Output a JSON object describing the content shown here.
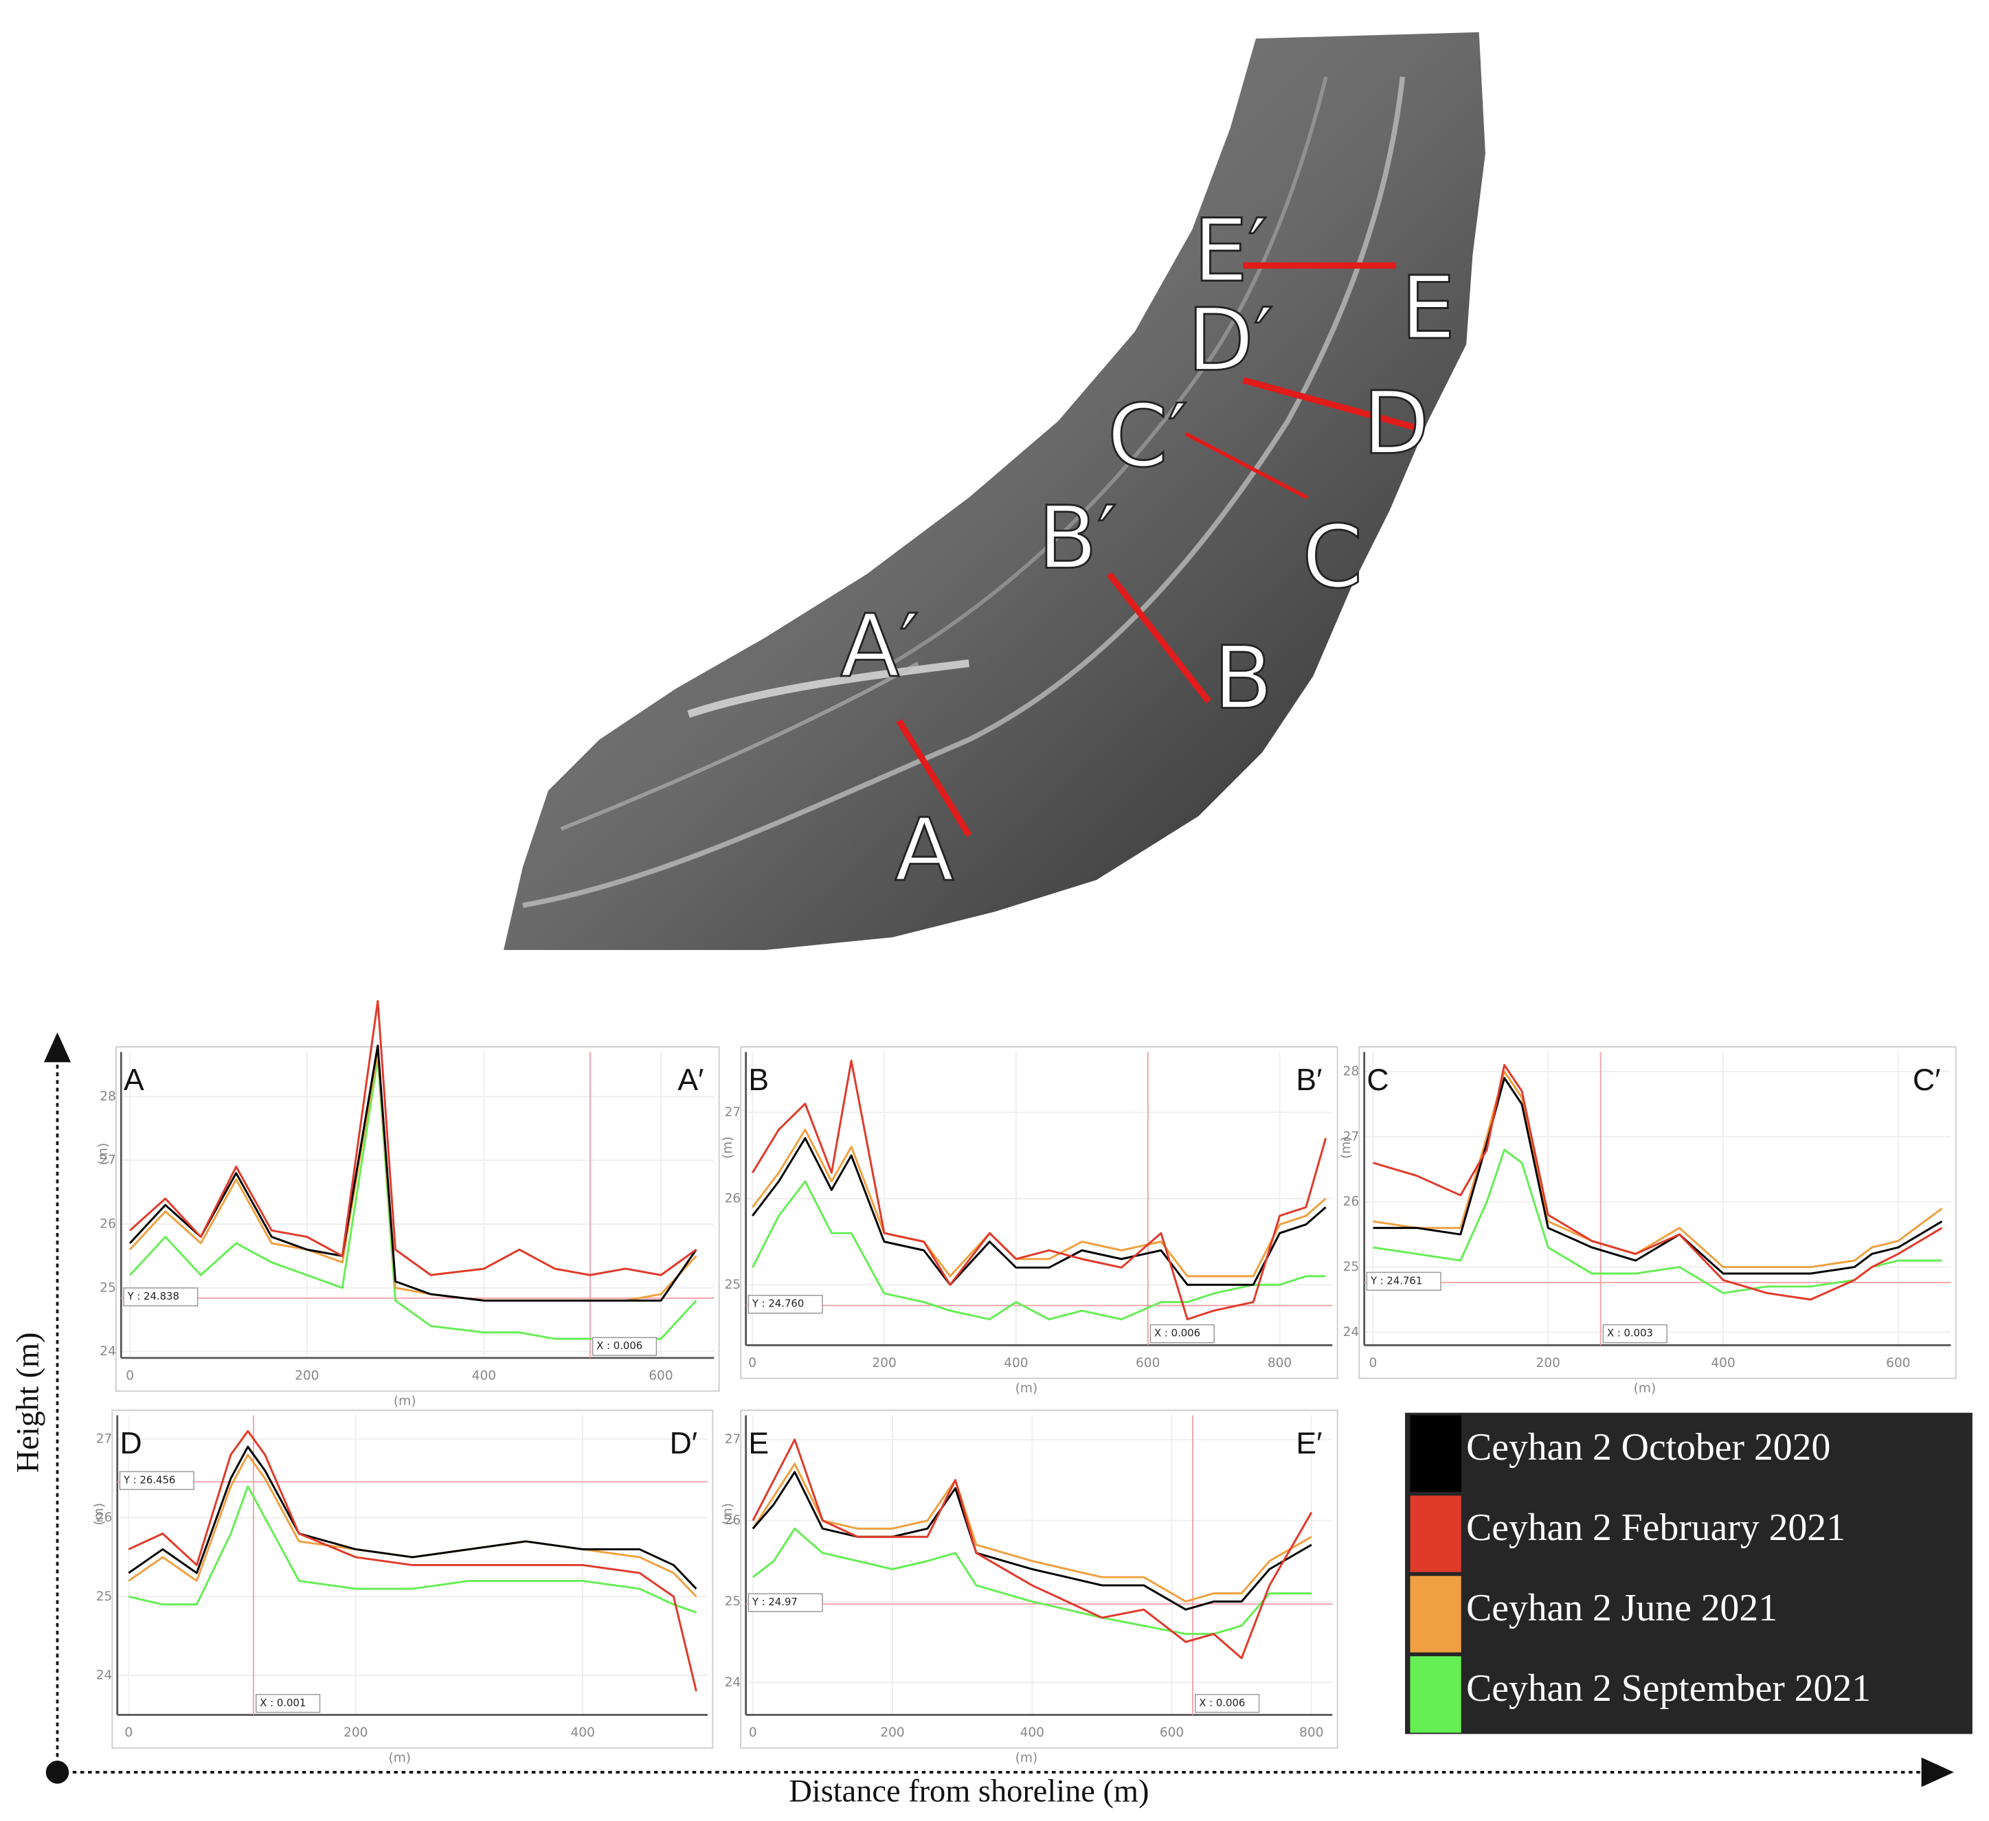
{
  "map": {
    "labels": [
      "A′",
      "A",
      "B′",
      "B",
      "C′",
      "C",
      "D′",
      "D",
      "E′",
      "E"
    ]
  },
  "y_axis_label": "Height (m)",
  "x_axis_label": "Distance from shoreline (m)",
  "chart_data": [
    {
      "type": "line",
      "start_label": "A",
      "end_label": "A′",
      "unit_label": "(m)",
      "xlabel": "(m)",
      "xlim": [
        -10,
        660
      ],
      "xticks": [
        0,
        200,
        400,
        600
      ],
      "ylim": [
        23.9,
        28.7
      ],
      "yticks": [
        24,
        25,
        26,
        27,
        28
      ],
      "grid": true,
      "cursor_x": 520,
      "cursor_y": 24.838,
      "cursor_x_label": "X : 0.006",
      "cursor_y_label": "Y : 24.838",
      "x": [
        0,
        40,
        80,
        120,
        160,
        200,
        240,
        280,
        300,
        340,
        400,
        440,
        480,
        520,
        560,
        600,
        640
      ],
      "series": [
        {
          "name": "Ceyhan 2 October 2020",
          "color": "#000000",
          "values": [
            25.7,
            26.3,
            25.8,
            26.8,
            25.8,
            25.6,
            25.5,
            28.8,
            25.1,
            24.9,
            24.8,
            24.8,
            24.8,
            24.8,
            24.8,
            24.8,
            25.6
          ]
        },
        {
          "name": "Ceyhan 2 February 2021",
          "color": "#e03a2a",
          "values": [
            25.9,
            26.4,
            25.8,
            26.9,
            25.9,
            25.8,
            25.5,
            29.5,
            25.6,
            25.2,
            25.3,
            25.6,
            25.3,
            25.2,
            25.3,
            25.2,
            25.6
          ]
        },
        {
          "name": "Ceyhan 2 June 2021",
          "color": "#f0a040",
          "values": [
            25.6,
            26.2,
            25.7,
            26.7,
            25.7,
            25.6,
            25.4,
            28.7,
            25.0,
            24.9,
            24.8,
            24.8,
            24.8,
            24.8,
            24.8,
            24.9,
            25.5
          ]
        },
        {
          "name": "Ceyhan 2 September 2021",
          "color": "#66ee55",
          "values": [
            25.2,
            25.8,
            25.2,
            25.7,
            25.4,
            25.2,
            25.0,
            28.6,
            24.8,
            24.4,
            24.3,
            24.3,
            24.2,
            24.2,
            24.2,
            24.2,
            24.8
          ]
        }
      ]
    },
    {
      "type": "line",
      "start_label": "B",
      "end_label": "B′",
      "unit_label": "(m)",
      "xlabel": "(m)",
      "xlim": [
        -10,
        880
      ],
      "xticks": [
        0,
        200,
        400,
        600,
        800
      ],
      "ylim": [
        24.3,
        27.7
      ],
      "yticks": [
        25,
        26,
        27
      ],
      "grid": true,
      "cursor_x": 600,
      "cursor_y": 24.76,
      "cursor_x_label": "X : 0.006",
      "cursor_y_label": "Y : 24.760",
      "x": [
        0,
        40,
        80,
        120,
        150,
        200,
        260,
        300,
        360,
        400,
        450,
        500,
        560,
        620,
        660,
        700,
        760,
        800,
        840,
        870
      ],
      "series": [
        {
          "name": "Ceyhan 2 October 2020",
          "color": "#000000",
          "values": [
            25.8,
            26.2,
            26.7,
            26.1,
            26.5,
            25.5,
            25.4,
            25.0,
            25.5,
            25.2,
            25.2,
            25.4,
            25.3,
            25.4,
            25.0,
            25.0,
            25.0,
            25.6,
            25.7,
            25.9
          ]
        },
        {
          "name": "Ceyhan 2 February 2021",
          "color": "#e03a2a",
          "values": [
            26.3,
            26.8,
            27.1,
            26.3,
            27.6,
            25.6,
            25.5,
            25.0,
            25.6,
            25.3,
            25.4,
            25.3,
            25.2,
            25.6,
            24.6,
            24.7,
            24.8,
            25.8,
            25.9,
            26.7
          ]
        },
        {
          "name": "Ceyhan 2 June 2021",
          "color": "#f0a040",
          "values": [
            25.9,
            26.3,
            26.8,
            26.2,
            26.6,
            25.6,
            25.5,
            25.1,
            25.6,
            25.3,
            25.3,
            25.5,
            25.4,
            25.5,
            25.1,
            25.1,
            25.1,
            25.7,
            25.8,
            26.0
          ]
        },
        {
          "name": "Ceyhan 2 September 2021",
          "color": "#66ee55",
          "values": [
            25.2,
            25.8,
            26.2,
            25.6,
            25.6,
            24.9,
            24.8,
            24.7,
            24.6,
            24.8,
            24.6,
            24.7,
            24.6,
            24.8,
            24.8,
            24.9,
            25.0,
            25.0,
            25.1,
            25.1
          ]
        }
      ]
    },
    {
      "type": "line",
      "start_label": "C",
      "end_label": "C′",
      "unit_label": "(m)",
      "xlabel": "(m)",
      "xlim": [
        -10,
        660
      ],
      "xticks": [
        0,
        200,
        400,
        600
      ],
      "ylim": [
        23.8,
        28.3
      ],
      "yticks": [
        24,
        25,
        26,
        27,
        28
      ],
      "grid": true,
      "cursor_x": 260,
      "cursor_y": 24.761,
      "cursor_x_label": "X : 0.003",
      "cursor_y_label": "Y : 24.761",
      "x": [
        0,
        50,
        100,
        130,
        150,
        170,
        200,
        250,
        300,
        350,
        400,
        450,
        500,
        550,
        570,
        600,
        650
      ],
      "series": [
        {
          "name": "Ceyhan 2 October 2020",
          "color": "#000000",
          "values": [
            25.6,
            25.6,
            25.5,
            26.9,
            27.9,
            27.5,
            25.6,
            25.3,
            25.1,
            25.5,
            24.9,
            24.9,
            24.9,
            25.0,
            25.2,
            25.3,
            25.7
          ]
        },
        {
          "name": "Ceyhan 2 February 2021",
          "color": "#e03a2a",
          "values": [
            26.6,
            26.4,
            26.1,
            26.8,
            28.1,
            27.7,
            25.8,
            25.4,
            25.2,
            25.5,
            24.8,
            24.6,
            24.5,
            24.8,
            25.0,
            25.2,
            25.6
          ]
        },
        {
          "name": "Ceyhan 2 June 2021",
          "color": "#f0a040",
          "values": [
            25.7,
            25.6,
            25.6,
            27.0,
            28.0,
            27.6,
            25.7,
            25.4,
            25.2,
            25.6,
            25.0,
            25.0,
            25.0,
            25.1,
            25.3,
            25.4,
            25.9
          ]
        },
        {
          "name": "Ceyhan 2 September 2021",
          "color": "#66ee55",
          "values": [
            25.3,
            25.2,
            25.1,
            26.0,
            26.8,
            26.6,
            25.3,
            24.9,
            24.9,
            25.0,
            24.6,
            24.7,
            24.7,
            24.8,
            25.0,
            25.1,
            25.1
          ]
        }
      ]
    },
    {
      "type": "line",
      "start_label": "D",
      "end_label": "D′",
      "unit_label": "(m)",
      "xlabel": "(m)",
      "xlim": [
        -10,
        510
      ],
      "xticks": [
        0,
        200,
        400
      ],
      "ylim": [
        23.5,
        27.3
      ],
      "yticks": [
        24,
        25,
        26,
        27
      ],
      "grid": true,
      "cursor_x": 110,
      "cursor_y": 26.456,
      "cursor_x_label": "X : 0.001",
      "cursor_y_label": "Y : 26.456",
      "x": [
        0,
        30,
        60,
        90,
        105,
        120,
        150,
        200,
        250,
        300,
        350,
        400,
        450,
        480,
        500
      ],
      "series": [
        {
          "name": "Ceyhan 2 October 2020",
          "color": "#000000",
          "values": [
            25.3,
            25.6,
            25.3,
            26.5,
            26.9,
            26.6,
            25.8,
            25.6,
            25.5,
            25.6,
            25.7,
            25.6,
            25.6,
            25.4,
            25.1
          ]
        },
        {
          "name": "Ceyhan 2 February 2021",
          "color": "#e03a2a",
          "values": [
            25.6,
            25.8,
            25.4,
            26.8,
            27.1,
            26.8,
            25.8,
            25.5,
            25.4,
            25.4,
            25.4,
            25.4,
            25.3,
            25.0,
            23.8
          ]
        },
        {
          "name": "Ceyhan 2 June 2021",
          "color": "#f0a040",
          "values": [
            25.2,
            25.5,
            25.2,
            26.4,
            26.8,
            26.5,
            25.7,
            25.6,
            25.5,
            25.6,
            25.7,
            25.6,
            25.5,
            25.3,
            25.0
          ]
        },
        {
          "name": "Ceyhan 2 September 2021",
          "color": "#66ee55",
          "values": [
            25.0,
            24.9,
            24.9,
            25.8,
            26.4,
            26.0,
            25.2,
            25.1,
            25.1,
            25.2,
            25.2,
            25.2,
            25.1,
            24.9,
            24.8
          ]
        }
      ]
    },
    {
      "type": "line",
      "start_label": "E",
      "end_label": "E′",
      "unit_label": "(m)",
      "xlabel": "(m)",
      "xlim": [
        -10,
        830
      ],
      "xticks": [
        0,
        200,
        400,
        600,
        800
      ],
      "ylim": [
        23.6,
        27.3
      ],
      "yticks": [
        24,
        25,
        26,
        27
      ],
      "grid": true,
      "cursor_x": 630,
      "cursor_y": 24.97,
      "cursor_x_label": "X : 0.006",
      "cursor_y_label": "Y : 24.97",
      "x": [
        0,
        30,
        60,
        100,
        150,
        200,
        250,
        290,
        320,
        400,
        450,
        500,
        560,
        620,
        660,
        700,
        740,
        800
      ],
      "series": [
        {
          "name": "Ceyhan 2 October 2020",
          "color": "#000000",
          "values": [
            25.9,
            26.2,
            26.6,
            25.9,
            25.8,
            25.8,
            25.9,
            26.4,
            25.6,
            25.4,
            25.3,
            25.2,
            25.2,
            24.9,
            25.0,
            25.0,
            25.4,
            25.7
          ]
        },
        {
          "name": "Ceyhan 2 February 2021",
          "color": "#e03a2a",
          "values": [
            26.0,
            26.5,
            27.0,
            26.0,
            25.8,
            25.8,
            25.8,
            26.5,
            25.6,
            25.2,
            25.0,
            24.8,
            24.9,
            24.5,
            24.6,
            24.3,
            25.2,
            26.1
          ]
        },
        {
          "name": "Ceyhan 2 June 2021",
          "color": "#f0a040",
          "values": [
            25.9,
            26.3,
            26.7,
            26.0,
            25.9,
            25.9,
            26.0,
            26.5,
            25.7,
            25.5,
            25.4,
            25.3,
            25.3,
            25.0,
            25.1,
            25.1,
            25.5,
            25.8
          ]
        },
        {
          "name": "Ceyhan 2 September 2021",
          "color": "#66ee55",
          "values": [
            25.3,
            25.5,
            25.9,
            25.6,
            25.5,
            25.4,
            25.5,
            25.6,
            25.2,
            25.0,
            24.9,
            24.8,
            24.7,
            24.6,
            24.6,
            24.7,
            25.1,
            25.1
          ]
        }
      ]
    }
  ]
}
